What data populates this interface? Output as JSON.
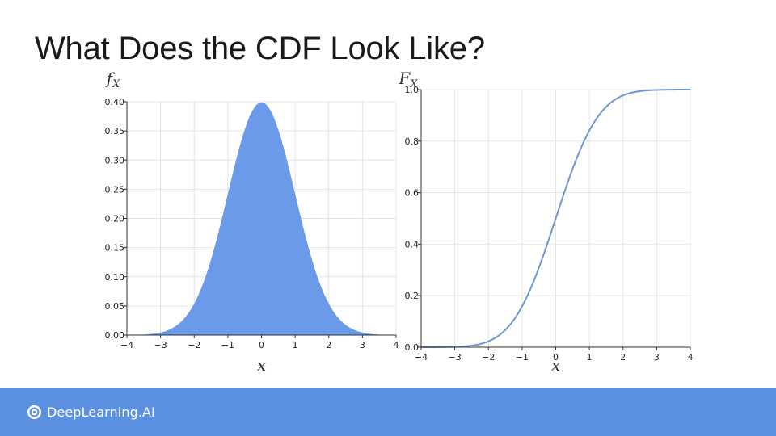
{
  "title": "What Does the CDF Look Like?",
  "brand": {
    "name": "DeepLearning.AI",
    "icon": "deeplearning-logo-icon",
    "footer_color": "#5b8fe0"
  },
  "chart_data": [
    {
      "type": "area",
      "ylabel": {
        "main": "f",
        "sub": "X"
      },
      "xlabel": "x",
      "xlim": [
        -4,
        4
      ],
      "ylim": [
        0,
        0.4
      ],
      "x_ticks": [
        "−4",
        "−3",
        "−2",
        "−1",
        "0",
        "1",
        "2",
        "3",
        "4"
      ],
      "y_ticks": [
        "0.00",
        "0.05",
        "0.10",
        "0.15",
        "0.20",
        "0.25",
        "0.30",
        "0.35",
        "0.40"
      ],
      "grid": true,
      "color": "#6a9ae8",
      "series": [
        {
          "x": [
            -4,
            -3.5,
            -3,
            -2.5,
            -2,
            -1.5,
            -1,
            -0.5,
            0,
            0.5,
            1,
            1.5,
            2,
            2.5,
            3,
            3.5,
            4
          ],
          "y": [
            0.0001,
            0.0009,
            0.0044,
            0.0175,
            0.054,
            0.1295,
            0.242,
            0.3521,
            0.3989,
            0.3521,
            0.242,
            0.1295,
            0.054,
            0.0175,
            0.0044,
            0.0009,
            0.0001
          ]
        }
      ]
    },
    {
      "type": "line",
      "ylabel": {
        "main": "F",
        "sub": "X"
      },
      "xlabel": "x",
      "xlim": [
        -4,
        4
      ],
      "ylim": [
        0,
        1
      ],
      "x_ticks": [
        "−4",
        "−3",
        "−2",
        "−1",
        "0",
        "1",
        "2",
        "3",
        "4"
      ],
      "y_ticks": [
        "0.0",
        "0.2",
        "0.4",
        "0.6",
        "0.8",
        "1.0"
      ],
      "grid": true,
      "color": "#6f97d4",
      "series": [
        {
          "x": [
            -4,
            -3.5,
            -3,
            -2.5,
            -2,
            -1.5,
            -1,
            -0.5,
            0,
            0.5,
            1,
            1.5,
            2,
            2.5,
            3,
            3.5,
            4
          ],
          "y": [
            0.0,
            0.0002,
            0.0013,
            0.0062,
            0.0228,
            0.0668,
            0.1587,
            0.3085,
            0.5,
            0.6915,
            0.8413,
            0.9332,
            0.9772,
            0.9938,
            0.9987,
            0.9998,
            1.0
          ]
        }
      ]
    }
  ]
}
